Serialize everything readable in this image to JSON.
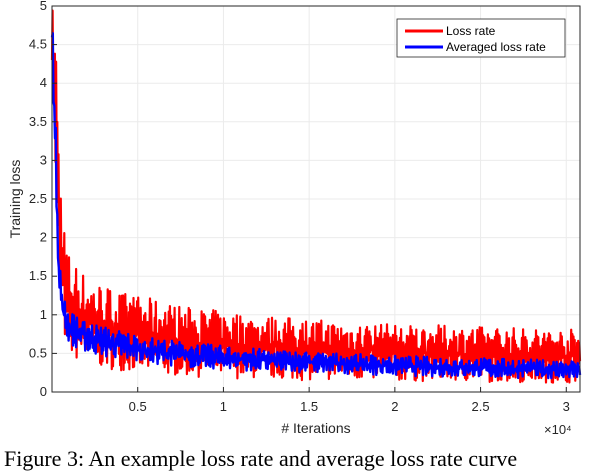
{
  "colors": {
    "loss": "#ff0000",
    "averaged": "#0000ff",
    "axis": "#262626",
    "grid": "#ebebeb"
  },
  "chart_data": {
    "type": "line",
    "xlabel": "# Iterations",
    "ylabel": "Training loss",
    "x_multiplier_label": "×10⁴",
    "xlim": [
      0,
      3.08
    ],
    "ylim": [
      0,
      5
    ],
    "xticks": [
      0.5,
      1,
      1.5,
      2,
      2.5,
      3
    ],
    "yticks": [
      0,
      0.5,
      1,
      1.5,
      2,
      2.5,
      3,
      3.5,
      4,
      4.5,
      5
    ],
    "grid": true,
    "legend_position": "top-right",
    "series": [
      {
        "name": "Loss rate",
        "color": "#ff0000",
        "x": [
          0.0,
          0.02,
          0.04,
          0.06,
          0.08,
          0.1,
          0.15,
          0.2,
          0.3,
          0.4,
          0.5,
          0.6,
          0.8,
          1.0,
          1.2,
          1.5,
          1.8,
          2.0,
          2.5,
          3.0,
          3.08
        ],
        "y": [
          5.0,
          3.5,
          2.2,
          1.6,
          1.3,
          1.1,
          0.95,
          0.85,
          0.75,
          0.68,
          0.62,
          0.58,
          0.53,
          0.5,
          0.47,
          0.44,
          0.42,
          0.4,
          0.38,
          0.36,
          0.36
        ],
        "band_low": [
          4.3,
          2.6,
          1.3,
          0.8,
          0.6,
          0.45,
          0.4,
          0.35,
          0.3,
          0.28,
          0.25,
          0.22,
          0.2,
          0.18,
          0.17,
          0.15,
          0.15,
          0.14,
          0.13,
          0.12,
          0.12
        ],
        "band_high": [
          5.0,
          4.9,
          3.3,
          2.4,
          2.1,
          1.8,
          1.65,
          1.5,
          1.4,
          1.3,
          1.25,
          1.2,
          1.1,
          1.05,
          1.0,
          0.95,
          0.9,
          0.88,
          0.85,
          0.82,
          0.82
        ]
      },
      {
        "name": "Averaged loss rate",
        "color": "#0000ff",
        "x": [
          0.0,
          0.02,
          0.04,
          0.06,
          0.08,
          0.1,
          0.15,
          0.2,
          0.3,
          0.4,
          0.5,
          0.6,
          0.8,
          1.0,
          1.2,
          1.5,
          1.8,
          2.0,
          2.5,
          3.0,
          3.08
        ],
        "y": [
          5.0,
          3.2,
          1.6,
          1.1,
          0.95,
          0.85,
          0.78,
          0.72,
          0.65,
          0.6,
          0.55,
          0.52,
          0.47,
          0.44,
          0.41,
          0.38,
          0.35,
          0.33,
          0.3,
          0.28,
          0.28
        ],
        "band_low": [
          4.5,
          2.8,
          1.3,
          0.85,
          0.72,
          0.63,
          0.56,
          0.52,
          0.46,
          0.42,
          0.39,
          0.36,
          0.32,
          0.29,
          0.27,
          0.25,
          0.23,
          0.21,
          0.19,
          0.17,
          0.17
        ],
        "band_high": [
          5.0,
          3.6,
          1.9,
          1.35,
          1.15,
          1.05,
          0.98,
          0.92,
          0.85,
          0.8,
          0.74,
          0.7,
          0.64,
          0.6,
          0.56,
          0.52,
          0.49,
          0.47,
          0.44,
          0.41,
          0.41
        ]
      }
    ]
  },
  "caption": "Figure 3: An example loss rate and average loss rate curve"
}
